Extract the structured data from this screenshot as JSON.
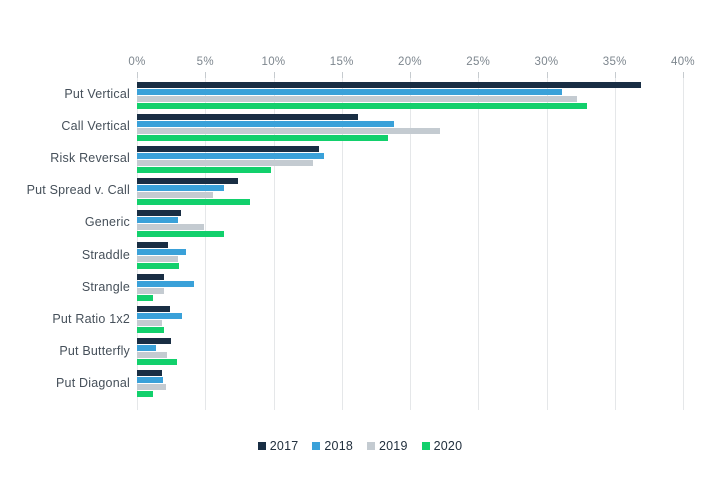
{
  "chart_data": {
    "type": "bar",
    "orientation": "horizontal",
    "title": "",
    "xlabel": "",
    "ylabel": "",
    "categories": [
      "Put Vertical",
      "Call Vertical",
      "Risk Reversal",
      "Put Spread v. Call",
      "Generic",
      "Straddle",
      "Strangle",
      "Put Ratio 1x2",
      "Put Butterfly",
      "Put Diagonal"
    ],
    "series": [
      {
        "name": "2017",
        "color": "#192e44",
        "values": [
          36.9,
          16.2,
          13.3,
          7.4,
          3.2,
          2.3,
          2.0,
          2.4,
          2.5,
          1.8
        ]
      },
      {
        "name": "2018",
        "color": "#3aa1d9",
        "values": [
          31.1,
          18.8,
          13.7,
          6.4,
          3.0,
          3.6,
          4.2,
          3.3,
          1.4,
          1.9
        ]
      },
      {
        "name": "2019",
        "color": "#c4cbd1",
        "values": [
          32.2,
          22.2,
          12.9,
          5.6,
          4.9,
          3.0,
          2.0,
          1.8,
          2.2,
          2.1
        ]
      },
      {
        "name": "2020",
        "color": "#12d06c",
        "values": [
          33.0,
          18.4,
          9.8,
          8.3,
          6.4,
          3.1,
          1.2,
          2.0,
          2.9,
          1.2
        ]
      }
    ],
    "x_axis": {
      "min": 0,
      "max": 40,
      "tick_step": 5,
      "tick_labels": [
        "0%",
        "5%",
        "10%",
        "15%",
        "20%",
        "25%",
        "30%",
        "35%",
        "40%"
      ],
      "position": "top",
      "unit": "%"
    },
    "grid": true,
    "legend_position": "bottom"
  }
}
